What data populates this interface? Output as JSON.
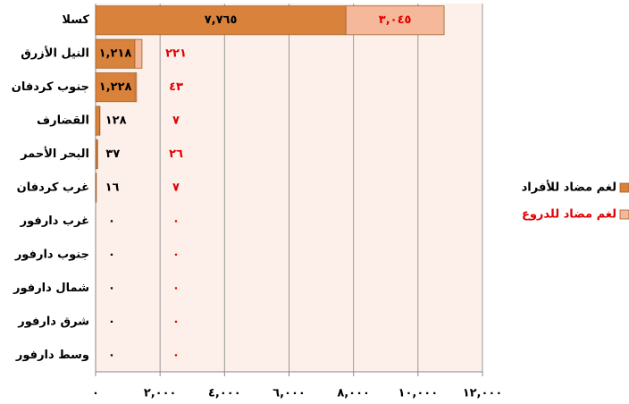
{
  "chart_data": {
    "type": "stacked-bar-horizontal",
    "categories": [
      "كسلا",
      "النيل الأزرق",
      "جنوب كردفان",
      "القضارف",
      "البحر الأحمر",
      "غرب كردفان",
      "غرب دارفور",
      "جنوب دارفور",
      "شمال دارفور",
      "شرق دارفور",
      "وسط دارفور"
    ],
    "series": [
      {
        "name": "لغم مضاد للأفراد",
        "color": "#d9823b",
        "label_color": "#000000",
        "values": [
          7765,
          1218,
          1228,
          128,
          37,
          16,
          0,
          0,
          0,
          0,
          0
        ],
        "value_labels": [
          "٧,٧٦٥",
          "١,٢١٨",
          "١,٢٢٨",
          "١٢٨",
          "٣٧",
          "١٦",
          "٠",
          "٠",
          "٠",
          "٠",
          "٠"
        ]
      },
      {
        "name": "لغم مضاد للدروع",
        "color": "#f6b89a",
        "label_color": "#e00000",
        "values": [
          3045,
          221,
          43,
          7,
          26,
          7,
          0,
          0,
          0,
          0,
          0
        ],
        "value_labels": [
          "٣,٠٤٥",
          "٢٢١",
          "٤٣",
          "٧",
          "٢٦",
          "٧",
          "٠",
          "٠",
          "٠",
          "٠",
          "٠"
        ]
      }
    ],
    "xlim": [
      0,
      12000
    ],
    "xticks": [
      {
        "value": 0,
        "label": "٠"
      },
      {
        "value": 2000,
        "label": "٢,٠٠٠"
      },
      {
        "value": 4000,
        "label": "٤,٠٠٠"
      },
      {
        "value": 6000,
        "label": "٦,٠٠٠"
      },
      {
        "value": 8000,
        "label": "٨,٠٠٠"
      },
      {
        "value": 10000,
        "label": "١٠,٠٠٠"
      },
      {
        "value": 12000,
        "label": "١٢,٠٠٠"
      }
    ],
    "grid": true,
    "legend": "right"
  }
}
